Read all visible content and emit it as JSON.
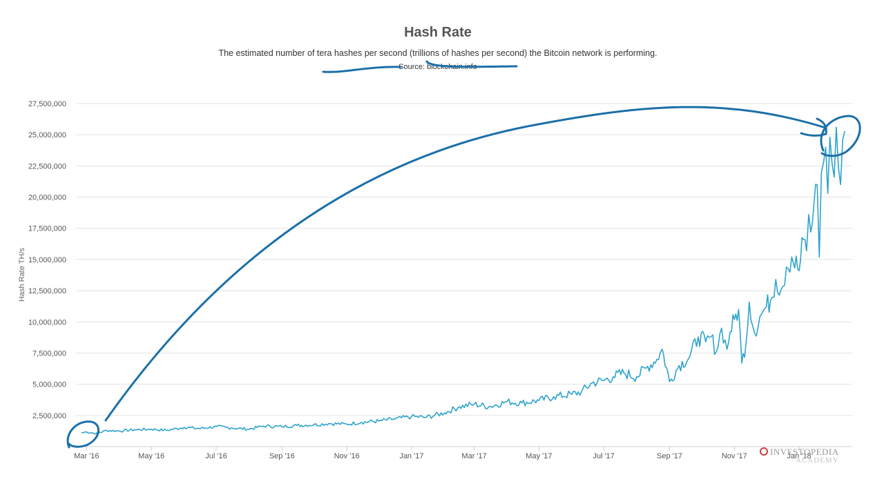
{
  "chart_data": {
    "type": "line",
    "title": "Hash Rate",
    "subtitle": "The estimated number of tera hashes per second (trillions of hashes per second) the Bitcoin network is performing.",
    "source": "Source: blockchain.info",
    "ylabel": "Hash Rate TH/s",
    "xlabel": "",
    "ylim": [
      0,
      27500000
    ],
    "y_ticks": [
      2500000,
      5000000,
      7500000,
      10000000,
      12500000,
      15000000,
      17500000,
      20000000,
      22500000,
      25000000,
      27500000
    ],
    "y_tick_labels": [
      "2,500,000",
      "5,000,000",
      "7,500,000",
      "10,000,000",
      "12,500,000",
      "15,000,000",
      "17,500,000",
      "20,000,000",
      "22,500,000",
      "25,000,000",
      "27,500,000"
    ],
    "x_range": [
      "2016-02-20",
      "2018-02-20"
    ],
    "x_ticks": [
      "2016-03-01",
      "2016-05-01",
      "2016-07-01",
      "2016-09-01",
      "2016-11-01",
      "2017-01-01",
      "2017-03-01",
      "2017-05-01",
      "2017-07-01",
      "2017-09-01",
      "2017-11-01",
      "2018-01-01"
    ],
    "x_tick_labels": [
      "Mar '16",
      "May '16",
      "Jul '16",
      "Sep '16",
      "Nov '16",
      "Jan '17",
      "Mar '17",
      "May '17",
      "Jul '17",
      "Sep '17",
      "Nov '17",
      "Jan '18"
    ],
    "grid": true,
    "legend": "none",
    "series": [
      {
        "color": "#2ea3cc",
        "x": [
          "2016-02-25",
          "2016-03-01",
          "2016-03-10",
          "2016-03-20",
          "2016-04-01",
          "2016-04-15",
          "2016-05-01",
          "2016-05-15",
          "2016-06-01",
          "2016-06-15",
          "2016-07-01",
          "2016-07-15",
          "2016-08-01",
          "2016-08-15",
          "2016-09-01",
          "2016-09-15",
          "2016-10-01",
          "2016-10-15",
          "2016-11-01",
          "2016-11-15",
          "2016-12-01",
          "2016-12-15",
          "2017-01-01",
          "2017-01-15",
          "2017-02-01",
          "2017-02-15",
          "2017-03-01",
          "2017-03-15",
          "2017-04-01",
          "2017-04-15",
          "2017-05-01",
          "2017-05-15",
          "2017-06-01",
          "2017-06-10",
          "2017-06-20",
          "2017-07-01",
          "2017-07-10",
          "2017-07-20",
          "2017-08-01",
          "2017-08-10",
          "2017-08-20",
          "2017-08-25",
          "2017-09-01",
          "2017-09-10",
          "2017-09-20",
          "2017-09-28",
          "2017-10-05",
          "2017-10-10",
          "2017-10-15",
          "2017-10-20",
          "2017-10-25",
          "2017-10-28",
          "2017-11-01",
          "2017-11-05",
          "2017-11-08",
          "2017-11-12",
          "2017-11-15",
          "2017-11-20",
          "2017-11-25",
          "2017-12-01",
          "2017-12-05",
          "2017-12-10",
          "2017-12-15",
          "2017-12-20",
          "2017-12-25",
          "2018-01-01",
          "2018-01-05",
          "2018-01-08",
          "2018-01-10",
          "2018-01-12",
          "2018-01-15",
          "2018-01-18",
          "2018-01-20",
          "2018-01-22",
          "2018-01-24",
          "2018-01-26",
          "2018-01-28",
          "2018-01-30",
          "2018-02-01",
          "2018-02-03",
          "2018-02-05",
          "2018-02-07",
          "2018-02-09",
          "2018-02-11",
          "2018-02-13"
        ],
        "values": [
          1100000,
          1180000,
          1050000,
          1300000,
          1250000,
          1350000,
          1400000,
          1300000,
          1550000,
          1450000,
          1600000,
          1500000,
          1400000,
          1650000,
          1600000,
          1700000,
          1750000,
          1850000,
          1800000,
          1950000,
          2050000,
          2200000,
          2400000,
          2350000,
          2700000,
          3200000,
          3400000,
          3200000,
          3600000,
          3500000,
          3700000,
          4000000,
          4200000,
          4400000,
          5100000,
          5300000,
          5600000,
          5900000,
          5600000,
          6300000,
          7000000,
          7800000,
          5200000,
          6500000,
          7200000,
          8800000,
          8400000,
          8800000,
          7600000,
          9500000,
          7800000,
          9200000,
          10200000,
          11000000,
          6700000,
          8300000,
          11600000,
          9100000,
          10400000,
          11200000,
          11700000,
          13400000,
          12600000,
          14400000,
          15200000,
          14100000,
          16600000,
          15700000,
          18600000,
          17200000,
          19500000,
          21000000,
          15200000,
          22000000,
          22800000,
          24000000,
          20300000,
          24800000,
          22700000,
          21600000,
          25600000,
          22400000,
          21000000,
          24600000,
          25300000
        ]
      }
    ]
  },
  "watermark": {
    "line1": "INVESTOPEDIA",
    "line2": "ACADEMY"
  }
}
